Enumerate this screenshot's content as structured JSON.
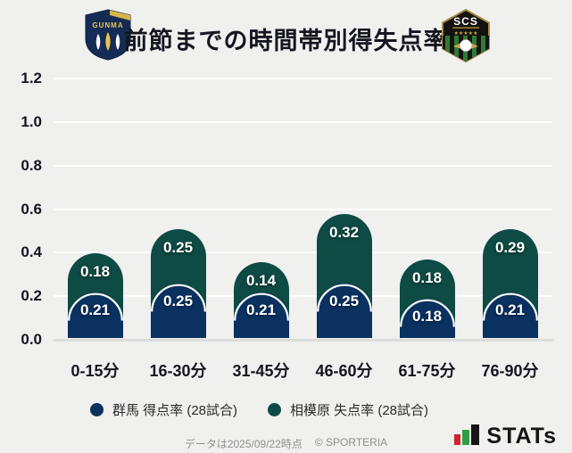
{
  "header": {
    "title": "前節までの時間帯別得失点率",
    "home_logo": {
      "text": "GUNMA"
    },
    "away_logo": {
      "text": "SCS"
    }
  },
  "chart_data": {
    "type": "bar",
    "stacked": true,
    "title": "前節までの時間帯別得失点率",
    "categories": [
      "0-15分",
      "16-30分",
      "31-45分",
      "46-60分",
      "61-75分",
      "76-90分"
    ],
    "series": [
      {
        "name": "群馬 得点率 (28試合)",
        "color": "#0a3160",
        "values": [
          0.21,
          0.25,
          0.21,
          0.25,
          0.18,
          0.21
        ]
      },
      {
        "name": "相模原 失点率 (28試合)",
        "color": "#0e4b44",
        "values": [
          0.18,
          0.25,
          0.14,
          0.32,
          0.18,
          0.29
        ]
      }
    ],
    "xlabel": "",
    "ylabel": "",
    "ylim": [
      0,
      1.2
    ],
    "yticks": [
      0,
      0.2,
      0.4,
      0.6,
      0.8,
      1.0,
      1.2
    ],
    "grid": true,
    "legend_position": "bottom",
    "colors": {
      "background": "#f0f0ef",
      "gridline": "#ffffff",
      "baseline": "#dcdcda",
      "value_label": "#ffffff",
      "axis_text": "#15161f"
    }
  },
  "footer": {
    "note": "データは2025/09/22時点",
    "copyright": "© SPORTERIA",
    "brand": "STATs"
  }
}
